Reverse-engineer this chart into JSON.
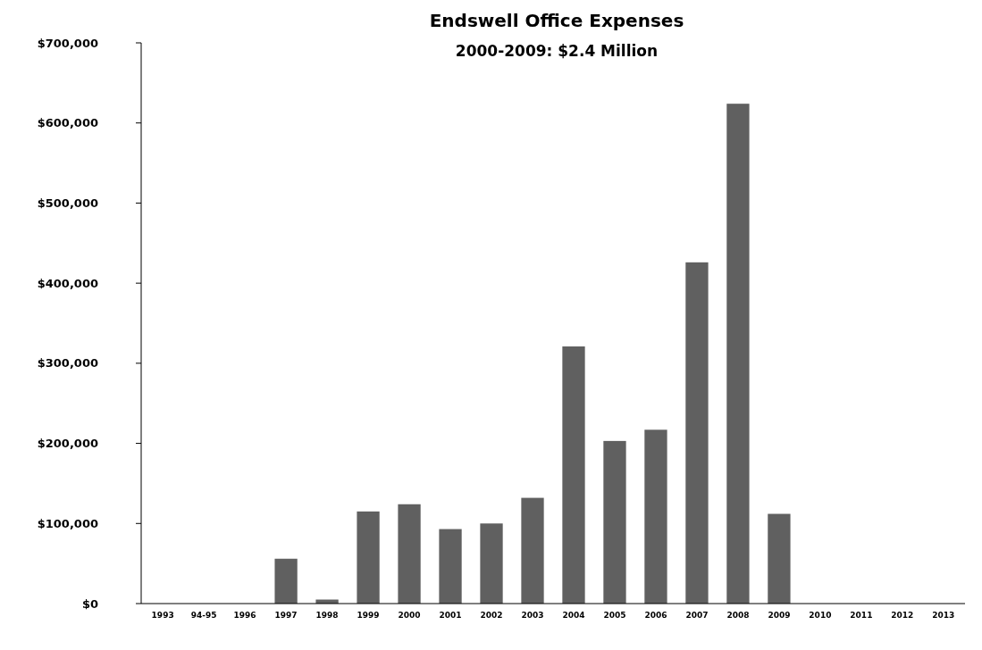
{
  "chart_data": {
    "type": "bar",
    "title": "Endswell Office Expenses",
    "subtitle": "2000-2009: $2.4 Million",
    "categories": [
      "1993",
      "94-95",
      "1996",
      "1997",
      "1998",
      "1999",
      "2000",
      "2001",
      "2002",
      "2003",
      "2004",
      "2005",
      "2006",
      "2007",
      "2008",
      "2009",
      "2010",
      "2011",
      "2012",
      "2013"
    ],
    "values": [
      0,
      0,
      0,
      56000,
      5000,
      115000,
      124000,
      93000,
      100000,
      132000,
      321000,
      203000,
      217000,
      426000,
      624000,
      112000,
      0,
      0,
      0,
      0
    ],
    "color": "#606060",
    "ylim": [
      0,
      700000
    ],
    "yticks": [
      {
        "value": 0,
        "label": "$0"
      },
      {
        "value": 100000,
        "label": "$100,000"
      },
      {
        "value": 200000,
        "label": "$200,000"
      },
      {
        "value": 300000,
        "label": "$300,000"
      },
      {
        "value": 400000,
        "label": "$400,000"
      },
      {
        "value": 500000,
        "label": "$500,000"
      },
      {
        "value": 600000,
        "label": "$600,000"
      },
      {
        "value": 700000,
        "label": "$700,000"
      }
    ],
    "grid": false
  }
}
